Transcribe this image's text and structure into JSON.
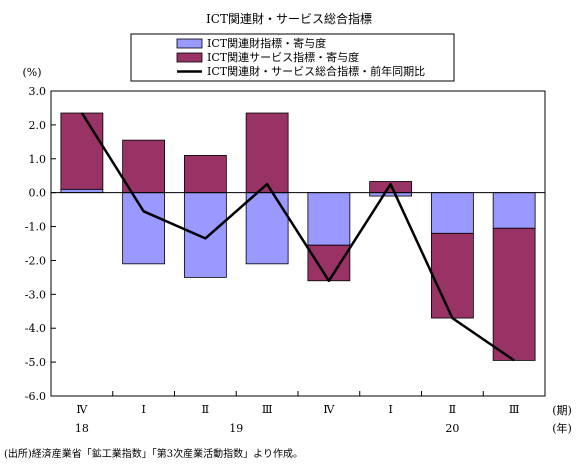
{
  "chart_data": {
    "type": "bar",
    "title": "ICT関連財・サービス総合指標",
    "ylabel": "(%)",
    "ylim": [
      -6.0,
      3.0
    ],
    "ytick_step": 1.0,
    "y_tick_labels": [
      "3.0",
      "2.0",
      "1.0",
      "0.0",
      "-1.0",
      "-2.0",
      "-3.0",
      "-4.0",
      "-5.0",
      "-6.0"
    ],
    "categories": [
      "Ⅳ",
      "Ⅰ",
      "Ⅱ",
      "Ⅲ",
      "Ⅳ",
      "Ⅰ",
      "Ⅱ",
      "Ⅲ"
    ],
    "year_labels": [
      {
        "label": "18",
        "index": 0
      },
      {
        "label": "19",
        "index": 2.5
      },
      {
        "label": "20",
        "index": 6
      }
    ],
    "x_unit_period": "(期)",
    "x_unit_year": "(年)",
    "legend_position": "top",
    "grid": false,
    "series": [
      {
        "name": "ICT関連財指標・寄与度",
        "kind": "stacked-bar",
        "color": "#9999ff",
        "values": [
          0.1,
          -2.1,
          -2.5,
          -2.1,
          -1.55,
          -0.1,
          -1.2,
          -1.05
        ]
      },
      {
        "name": "ICT関連サービス指標・寄与度",
        "kind": "stacked-bar",
        "color": "#993366",
        "values": [
          2.25,
          1.55,
          1.1,
          2.35,
          -1.05,
          0.33,
          -2.5,
          -3.9
        ]
      },
      {
        "name": "ICT関連財・サービス総合指標・前年同期比",
        "kind": "line",
        "color": "#000000",
        "values": [
          2.35,
          -0.55,
          -1.35,
          0.25,
          -2.6,
          0.25,
          -3.7,
          -4.95
        ]
      }
    ]
  },
  "footnote": "(出所)経済産業省「鉱工業指数」「第3次産業活動指数」より作成。"
}
